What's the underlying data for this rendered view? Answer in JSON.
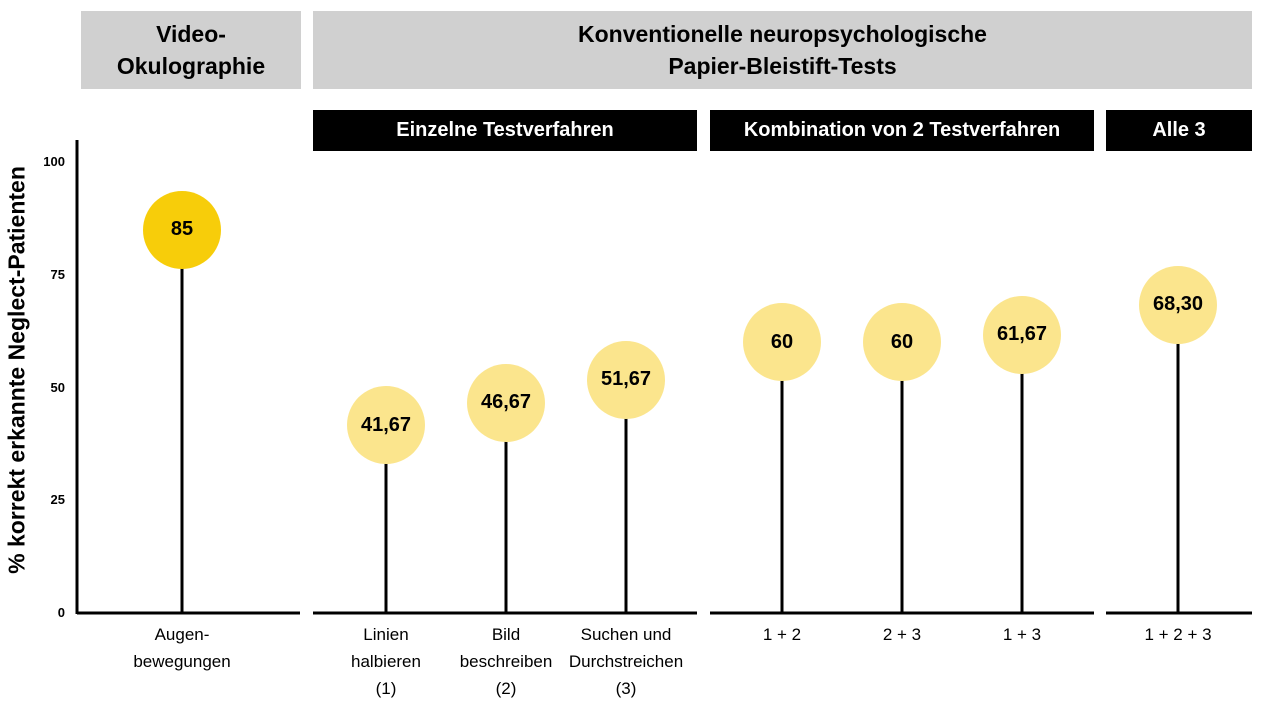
{
  "header": {
    "video_title": "Video-\nOkulographie",
    "conv_title": "Konventionelle neuropsychologische\nPapier-Bleistift-Tests"
  },
  "groups": {
    "single": "Einzelne Testverfahren",
    "combo": "Kombination von 2 Testverfahren",
    "all": "Alle 3"
  },
  "chart_data": {
    "type": "lollipop",
    "ylabel": "% korrekt erkannte Neglect-Patienten",
    "ylim": [
      0,
      100
    ],
    "yticks": [
      "0",
      "25",
      "50",
      "75",
      "100"
    ],
    "categories": [
      "Augen-\nbewegungen",
      "Linien\nhalbieren\n(1)",
      "Bild\nbeschreiben\n(2)",
      "Suchen und\nDurchstreichen\n(3)",
      "1 + 2",
      "2 + 3",
      "1 + 3",
      "1 + 2 + 3"
    ],
    "values": [
      85,
      41.67,
      46.67,
      51.67,
      60,
      60,
      61.67,
      68.3
    ],
    "value_labels": [
      "85",
      "41,67",
      "46,67",
      "51,67",
      "60",
      "60",
      "61,67",
      "68,30"
    ],
    "colors": {
      "highlight": "#f7cd0a",
      "normal": "#fbe58d"
    }
  }
}
